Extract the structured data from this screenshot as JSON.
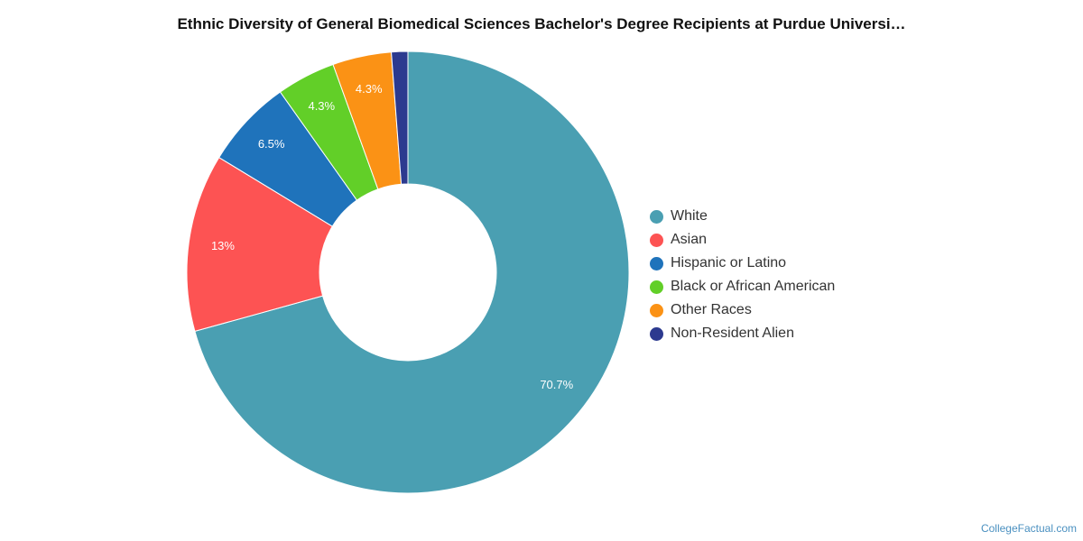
{
  "chart_data": {
    "type": "pie",
    "variant": "donut",
    "title": "Ethnic Diversity of General Biomedical Sciences Bachelor's Degree Recipients at Purdue Universi…",
    "categories": [
      "White",
      "Asian",
      "Hispanic or Latino",
      "Black or African American",
      "Other Races",
      "Non-Resident Alien"
    ],
    "values": [
      70.7,
      13.0,
      6.5,
      4.3,
      4.3,
      1.2
    ],
    "data_labels": [
      "70.7%",
      "13%",
      "6.5%",
      "4.3%",
      "4.3%",
      ""
    ],
    "colors": [
      "#4a9fb2",
      "#fd5353",
      "#1f73bb",
      "#62cf28",
      "#fb9215",
      "#2c3a8f"
    ],
    "legend_position": "right"
  },
  "credit": "CollegeFactual.com"
}
